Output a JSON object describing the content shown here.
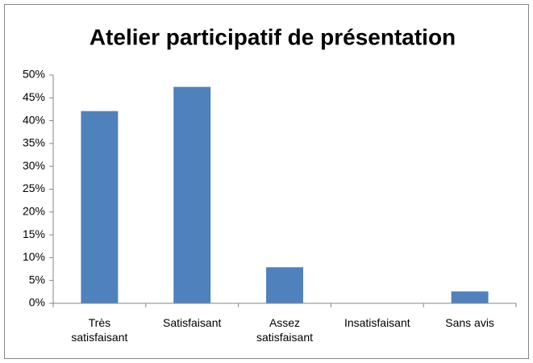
{
  "chart_data": {
    "type": "bar",
    "title": "Atelier participatif de présentation",
    "categories": [
      "Très satisfaisant",
      "Satisfaisant",
      "Assez satisfaisant",
      "Insatisfaisant",
      "Sans avis"
    ],
    "values": [
      42.1,
      47.4,
      7.9,
      0,
      2.6
    ],
    "color": "#4f81bd",
    "ylim": [
      0,
      50
    ],
    "yticks": [
      {
        "value": 0,
        "label": "0%"
      },
      {
        "value": 5,
        "label": "5%"
      },
      {
        "value": 10,
        "label": "10%"
      },
      {
        "value": 15,
        "label": "15%"
      },
      {
        "value": 20,
        "label": "20%"
      },
      {
        "value": 25,
        "label": "25%"
      },
      {
        "value": 30,
        "label": "30%"
      },
      {
        "value": 35,
        "label": "35%"
      },
      {
        "value": 40,
        "label": "40%"
      },
      {
        "value": 45,
        "label": "45%"
      },
      {
        "value": 50,
        "label": "50%"
      }
    ],
    "grid": false
  }
}
